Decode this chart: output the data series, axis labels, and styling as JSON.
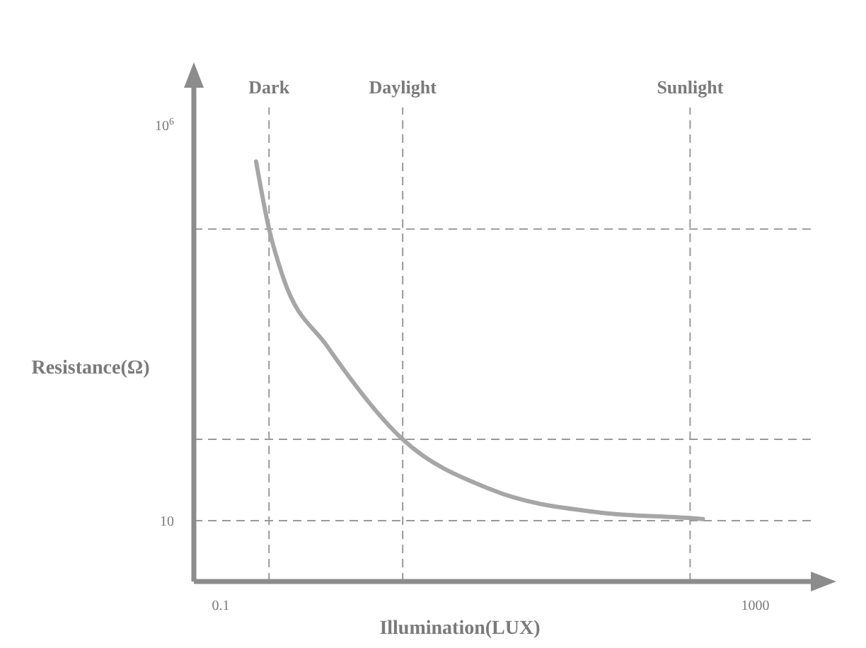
{
  "chart_data": {
    "type": "line",
    "xlabel": "Illumination(LUX)",
    "ylabel": "Resistance(Ω)",
    "log": "xy",
    "xlim": [
      0.063,
      2600
    ],
    "ylim": [
      1.7,
      3000000
    ],
    "xticks": [
      0.1,
      1000
    ],
    "yticks": [
      10,
      {
        "value": 1000000,
        "label": "10$^{6}$"
      }
    ],
    "grid": false,
    "marker": "none",
    "line_style": "solid",
    "x": [
      0.184,
      0.23,
      0.293,
      0.625,
      2.3,
      10.4,
      68,
      325,
      405
    ],
    "series": [
      {
        "color": "#a6a6a6",
        "values": [
          350000,
          49000,
          12000,
          1620,
          107,
          25,
          12.7,
          10.8,
          10.5
        ]
      }
    ],
    "ref_lines": [
      {
        "axis": "x",
        "value": 0.23,
        "label": "Dark",
        "color": "#999999",
        "line_style": "dashed"
      },
      {
        "axis": "x",
        "value": 2.3,
        "label": "Daylight",
        "color": "#999999",
        "line_style": "dashed"
      },
      {
        "axis": "x",
        "value": 325,
        "label": "Sunlight",
        "color": "#999999",
        "line_style": "dashed"
      },
      {
        "axis": "y",
        "value": 49000,
        "color": "#999999",
        "line_style": "dashed"
      },
      {
        "axis": "y",
        "value": 107,
        "color": "#999999",
        "line_style": "dashed"
      },
      {
        "axis": "y",
        "value": 10,
        "color": "#999999",
        "line_style": "dashed"
      }
    ]
  }
}
